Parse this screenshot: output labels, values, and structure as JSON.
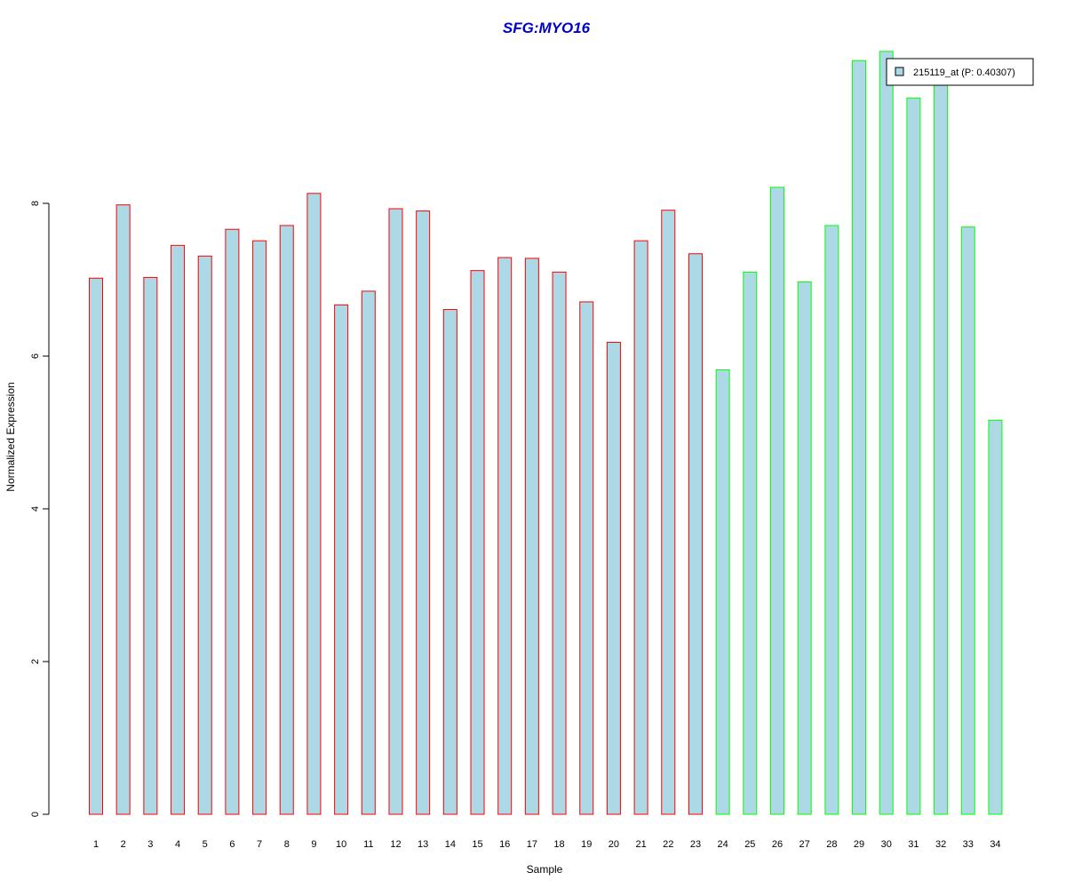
{
  "chart_data": {
    "type": "bar",
    "title": "SFG:MYO16",
    "xlabel": "Sample",
    "ylabel": "Normalized Expression",
    "categories": [
      "1",
      "2",
      "3",
      "4",
      "5",
      "6",
      "7",
      "8",
      "9",
      "10",
      "11",
      "12",
      "13",
      "14",
      "15",
      "16",
      "17",
      "18",
      "19",
      "20",
      "21",
      "22",
      "23",
      "24",
      "25",
      "26",
      "27",
      "28",
      "29",
      "30",
      "31",
      "32",
      "33",
      "34"
    ],
    "values": [
      7.02,
      7.98,
      7.03,
      7.45,
      7.31,
      7.66,
      7.51,
      7.71,
      8.13,
      6.67,
      6.85,
      7.93,
      7.9,
      6.61,
      7.12,
      7.29,
      7.28,
      7.1,
      6.71,
      6.18,
      7.51,
      7.91,
      7.34,
      5.82,
      7.1,
      8.21,
      6.97,
      7.71,
      9.87,
      9.99,
      9.38,
      9.65,
      7.69,
      5.16
    ],
    "groups": [
      "red",
      "red",
      "red",
      "red",
      "red",
      "red",
      "red",
      "red",
      "red",
      "red",
      "red",
      "red",
      "red",
      "red",
      "red",
      "red",
      "red",
      "red",
      "red",
      "red",
      "red",
      "red",
      "red",
      "green",
      "green",
      "green",
      "green",
      "green",
      "green",
      "green",
      "green",
      "green",
      "green",
      "green"
    ],
    "yticks": [
      0,
      2,
      4,
      6,
      8
    ],
    "ylim": [
      0,
      10
    ],
    "legend": {
      "label": "215119_at (P: 0.40307)",
      "position": "top-right"
    },
    "colors": {
      "bar_fill": "#add8e6",
      "border_red": "#ff0000",
      "border_green": "#00ff00",
      "title": "#0000cd"
    }
  }
}
